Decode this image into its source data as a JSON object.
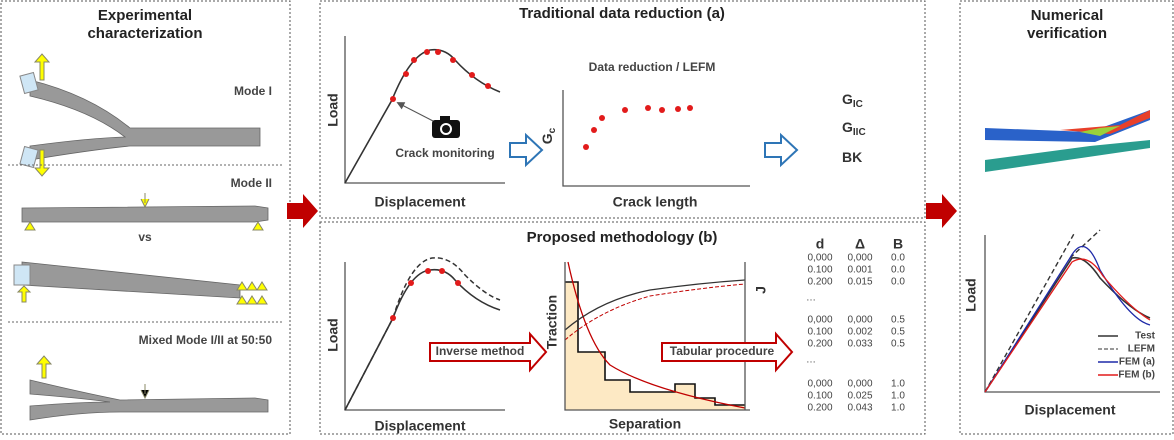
{
  "panels": {
    "experimental": {
      "title": [
        "Experimental",
        "characterization"
      ],
      "labels": [
        "Mode I",
        "Mode II",
        "vs",
        "Mixed Mode I/II at 50:50"
      ]
    },
    "traditional": {
      "title": "Traditional data reduction (a)",
      "load": "Load",
      "displacement": "Displacement",
      "camera_label": "Crack monitoring",
      "reduction_title": "Data reduction / LEFM",
      "gc": {
        "symbol": "G",
        "sub": "c"
      },
      "crack_length": "Crack length",
      "results": [
        {
          "symbol": "G",
          "sub": "IC"
        },
        {
          "symbol": "G",
          "sub": "IIC"
        },
        {
          "symbol": "BK",
          "sub": ""
        }
      ]
    },
    "proposed": {
      "title": "Proposed methodology (b)",
      "load": "Load",
      "displacement": "Displacement",
      "inverse": "Inverse method",
      "traction": "Traction",
      "separation": "Separation",
      "j": "J",
      "tabular": "Tabular procedure",
      "table": {
        "headers": [
          "d",
          "Δ",
          "B"
        ],
        "ellipsis": "…",
        "groups": [
          [
            [
              "0,000",
              "0,000",
              "0.0"
            ],
            [
              "0.100",
              "0.001",
              "0.0"
            ],
            [
              "0.200",
              "0.015",
              "0.0"
            ]
          ],
          [
            [
              "0,000",
              "0,000",
              "0.5"
            ],
            [
              "0.100",
              "0.002",
              "0.5"
            ],
            [
              "0.200",
              "0.033",
              "0.5"
            ]
          ],
          [
            [
              "0,000",
              "0,000",
              "1.0"
            ],
            [
              "0.100",
              "0.025",
              "1.0"
            ],
            [
              "0.200",
              "0.043",
              "1.0"
            ]
          ]
        ]
      }
    },
    "numerical": {
      "title": [
        "Numerical",
        "verification"
      ],
      "load": "Load",
      "displacement": "Displacement",
      "legend": [
        "Test",
        "LEFM",
        "FEM (a)",
        "FEM (b)"
      ]
    }
  }
}
